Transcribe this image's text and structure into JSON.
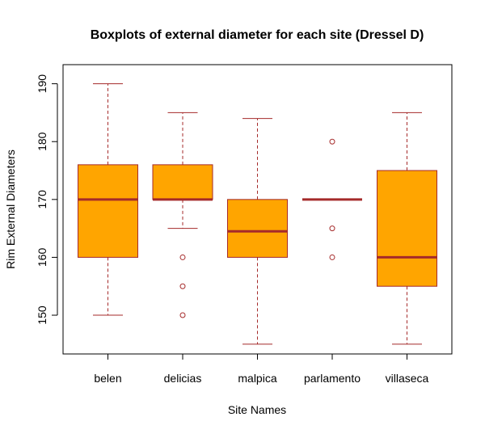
{
  "chart_data": {
    "type": "boxplot",
    "title": "Boxplots of external diameter for each site (Dressel D)",
    "xlabel": "Site Names",
    "ylabel": "Rim External Diameters",
    "ylim": [
      143.3,
      193.3
    ],
    "yticks": [
      150,
      160,
      170,
      180,
      190
    ],
    "categories": [
      "belen",
      "delicias",
      "malpica",
      "parlamento",
      "villaseca"
    ],
    "boxes": [
      {
        "name": "belen",
        "whisker_low": 150,
        "q1": 160,
        "median": 170,
        "q3": 176,
        "whisker_high": 190,
        "outliers": []
      },
      {
        "name": "delicias",
        "whisker_low": 165,
        "q1": 170,
        "median": 170,
        "q3": 176,
        "whisker_high": 185,
        "outliers": [
          160,
          155,
          150
        ]
      },
      {
        "name": "malpica",
        "whisker_low": 145,
        "q1": 160,
        "median": 164.5,
        "q3": 170,
        "whisker_high": 184,
        "outliers": []
      },
      {
        "name": "parlamento",
        "whisker_low": 170,
        "q1": 170,
        "median": 170,
        "q3": 170,
        "whisker_high": 170,
        "outliers": [
          180,
          165,
          160
        ]
      },
      {
        "name": "villaseca",
        "whisker_low": 145,
        "q1": 155,
        "median": 160,
        "q3": 175,
        "whisker_high": 185,
        "outliers": []
      }
    ],
    "grid": false,
    "legend": "none",
    "colors": {
      "box_fill": "#FFA500",
      "box_border": "#A52A2A",
      "median": "#A52A2A",
      "whisker": "#A52A2A",
      "outlier": "#A52A2A"
    }
  }
}
